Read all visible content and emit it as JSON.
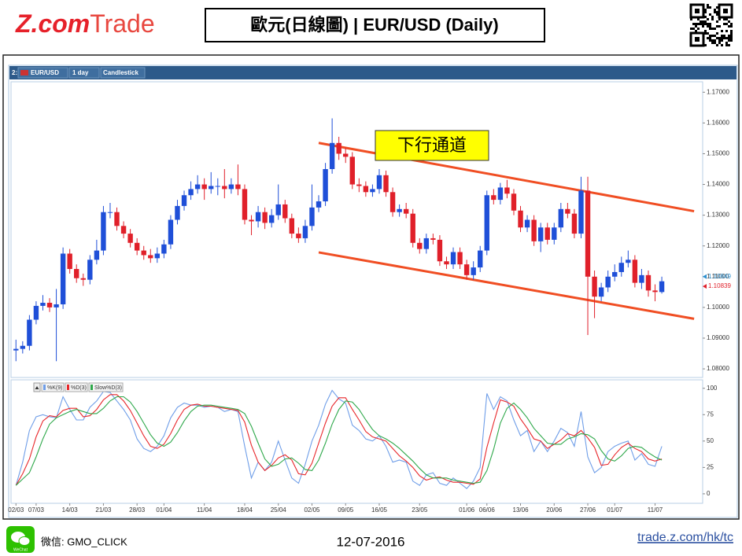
{
  "header": {
    "logo_left": "Z.com",
    "logo_right": "Trade",
    "title": "歐元(日線圖) | EUR/USD (Daily)"
  },
  "toolbar": {
    "slot": "2:",
    "symbol": "EUR/USD",
    "interval": "1 day",
    "chart_type": "Candlestick"
  },
  "chart_data": [
    {
      "type": "candlestick",
      "annotation": "下行通道",
      "up_color": "#1f4fd8",
      "down_color": "#e0202a",
      "open": [
        1.086,
        1.0865,
        1.0875,
        1.096,
        1.1005,
        1.1015,
        1.1,
        1.101,
        1.1175,
        1.1125,
        1.1095,
        1.109,
        1.1155,
        1.1185,
        1.131,
        1.131,
        1.1265,
        1.124,
        1.121,
        1.1185,
        1.117,
        1.116,
        1.1175,
        1.1205,
        1.1285,
        1.133,
        1.1365,
        1.1385,
        1.14,
        1.1385,
        1.1395,
        1.1395,
        1.1385,
        1.14,
        1.1385,
        1.1285,
        1.128,
        1.131,
        1.1275,
        1.13,
        1.1335,
        1.129,
        1.124,
        1.1225,
        1.1265,
        1.1325,
        1.1345,
        1.145,
        1.1535,
        1.15,
        1.149,
        1.14,
        1.1395,
        1.1375,
        1.1385,
        1.143,
        1.1375,
        1.131,
        1.132,
        1.1305,
        1.121,
        1.119,
        1.1225,
        1.122,
        1.115,
        1.114,
        1.118,
        1.114,
        1.1105,
        1.113,
        1.1185,
        1.1365,
        1.135,
        1.139,
        1.137,
        1.1315,
        1.126,
        1.1285,
        1.1215,
        1.126,
        1.122,
        1.126,
        1.132,
        1.1305,
        1.124,
        1.138,
        1.11,
        1.1035,
        1.1065,
        1.11,
        1.1115,
        1.1145,
        1.1155,
        1.108,
        1.1105,
        1.1055,
        1.105
      ],
      "high": [
        1.0895,
        1.089,
        1.0975,
        1.102,
        1.104,
        1.103,
        1.106,
        1.1195,
        1.119,
        1.114,
        1.111,
        1.117,
        1.122,
        1.133,
        1.134,
        1.1325,
        1.128,
        1.1255,
        1.1225,
        1.12,
        1.119,
        1.1195,
        1.122,
        1.13,
        1.135,
        1.138,
        1.141,
        1.143,
        1.142,
        1.144,
        1.142,
        1.145,
        1.142,
        1.1465,
        1.14,
        1.13,
        1.133,
        1.1325,
        1.132,
        1.14,
        1.135,
        1.1305,
        1.126,
        1.1285,
        1.14,
        1.1365,
        1.147,
        1.1615,
        1.1555,
        1.152,
        1.1505,
        1.142,
        1.141,
        1.14,
        1.145,
        1.1445,
        1.139,
        1.1335,
        1.134,
        1.132,
        1.1225,
        1.124,
        1.124,
        1.1235,
        1.1165,
        1.1195,
        1.1195,
        1.1155,
        1.115,
        1.12,
        1.138,
        1.1385,
        1.1405,
        1.1415,
        1.1385,
        1.133,
        1.13,
        1.13,
        1.1275,
        1.1275,
        1.1275,
        1.134,
        1.134,
        1.132,
        1.1425,
        1.1425,
        1.112,
        1.108,
        1.112,
        1.114,
        1.1165,
        1.1185,
        1.117,
        1.1125,
        1.112,
        1.1075,
        1.11
      ],
      "low": [
        1.0825,
        1.085,
        1.086,
        1.0945,
        1.099,
        1.0985,
        1.0825,
        1.0995,
        1.111,
        1.108,
        1.107,
        1.1075,
        1.114,
        1.117,
        1.129,
        1.125,
        1.1225,
        1.1195,
        1.117,
        1.1155,
        1.1145,
        1.1145,
        1.116,
        1.119,
        1.127,
        1.1315,
        1.135,
        1.137,
        1.135,
        1.137,
        1.1365,
        1.1355,
        1.137,
        1.1365,
        1.127,
        1.1235,
        1.126,
        1.1255,
        1.126,
        1.1285,
        1.1275,
        1.1225,
        1.121,
        1.121,
        1.125,
        1.131,
        1.133,
        1.1435,
        1.148,
        1.147,
        1.1385,
        1.1375,
        1.136,
        1.136,
        1.137,
        1.136,
        1.1295,
        1.1295,
        1.129,
        1.1195,
        1.1175,
        1.1175,
        1.1205,
        1.1135,
        1.1125,
        1.1125,
        1.1125,
        1.109,
        1.109,
        1.1115,
        1.117,
        1.1335,
        1.1335,
        1.1355,
        1.13,
        1.1245,
        1.1245,
        1.12,
        1.118,
        1.1205,
        1.1205,
        1.1245,
        1.129,
        1.1225,
        1.1225,
        1.091,
        1.0965,
        1.102,
        1.105,
        1.1085,
        1.11,
        1.113,
        1.1065,
        1.106,
        1.1035,
        1.102,
        1.1045
      ],
      "close": [
        1.0865,
        1.0875,
        1.096,
        1.1005,
        1.1015,
        1.1,
        1.101,
        1.1175,
        1.1125,
        1.1095,
        1.109,
        1.1155,
        1.1185,
        1.131,
        1.131,
        1.1265,
        1.124,
        1.121,
        1.1185,
        1.117,
        1.116,
        1.1175,
        1.1205,
        1.1285,
        1.133,
        1.1365,
        1.1385,
        1.14,
        1.1385,
        1.1395,
        1.1395,
        1.1385,
        1.14,
        1.1385,
        1.1285,
        1.128,
        1.131,
        1.1275,
        1.13,
        1.1335,
        1.129,
        1.124,
        1.1225,
        1.1265,
        1.1325,
        1.1345,
        1.145,
        1.1535,
        1.15,
        1.149,
        1.14,
        1.1395,
        1.1375,
        1.1385,
        1.143,
        1.1375,
        1.131,
        1.132,
        1.1305,
        1.121,
        1.119,
        1.1225,
        1.122,
        1.115,
        1.114,
        1.118,
        1.114,
        1.1105,
        1.113,
        1.1185,
        1.1365,
        1.135,
        1.139,
        1.137,
        1.1315,
        1.126,
        1.1285,
        1.1215,
        1.126,
        1.122,
        1.126,
        1.132,
        1.1305,
        1.124,
        1.138,
        1.11,
        1.1035,
        1.1065,
        1.11,
        1.1115,
        1.1145,
        1.1155,
        1.108,
        1.1105,
        1.1055,
        1.105,
        1.1085
      ],
      "ylim": [
        1.0772,
        1.1734
      ],
      "yticks": [
        {
          "value": 1.08,
          "label": "1.08000"
        },
        {
          "value": 1.09,
          "label": "1.09000"
        },
        {
          "value": 1.1,
          "label": "1.10000"
        },
        {
          "value": 1.11,
          "label": "1.11000"
        },
        {
          "value": 1.12,
          "label": "1.12000"
        },
        {
          "value": 1.13,
          "label": "1.13000"
        },
        {
          "value": 1.14,
          "label": "1.14000"
        },
        {
          "value": 1.15,
          "label": "1.15000"
        },
        {
          "value": 1.16,
          "label": "1.16000"
        },
        {
          "value": 1.17,
          "label": "1.17000"
        }
      ],
      "last_prices": [
        {
          "value": 1.10849,
          "color": "#2a8fd0"
        },
        {
          "value": 1.10839,
          "color": "#e0202a"
        }
      ],
      "trend_lines": [
        {
          "color": "#f04e23",
          "x": [
            45,
            100.8
          ],
          "y": [
            1.1535,
            1.1313
          ]
        },
        {
          "color": "#f04e23",
          "x": [
            45,
            100.8
          ],
          "y": [
            1.1179,
            1.0963
          ]
        }
      ]
    },
    {
      "type": "line",
      "categories": [
        "02/03",
        null,
        null,
        "07/03",
        null,
        null,
        null,
        null,
        "14/03",
        null,
        null,
        null,
        null,
        "21/03",
        null,
        null,
        null,
        null,
        "28/03",
        null,
        null,
        null,
        "01/04",
        null,
        null,
        null,
        null,
        null,
        "11/04",
        null,
        null,
        null,
        null,
        null,
        "18/04",
        null,
        null,
        null,
        null,
        "25/04",
        null,
        null,
        null,
        null,
        "02/05",
        null,
        null,
        null,
        null,
        "09/05",
        null,
        null,
        null,
        null,
        "16/05",
        null,
        null,
        null,
        null,
        null,
        "23/05",
        null,
        null,
        null,
        null,
        null,
        null,
        "01/06",
        null,
        null,
        "06/06",
        null,
        null,
        null,
        null,
        "13/06",
        null,
        null,
        null,
        null,
        "20/06",
        null,
        null,
        null,
        null,
        "27/06",
        null,
        null,
        null,
        "01/07",
        null,
        null,
        null,
        null,
        null,
        "11/07",
        null
      ],
      "series": [
        {
          "name": "%K(9)",
          "color": "#6f9ee8",
          "values": [
            8,
            30,
            60,
            73,
            75,
            73,
            72,
            92,
            80,
            70,
            70,
            82,
            88,
            97,
            96,
            88,
            80,
            70,
            52,
            43,
            40,
            45,
            55,
            72,
            82,
            86,
            84,
            84,
            82,
            83,
            82,
            78,
            80,
            78,
            45,
            15,
            30,
            22,
            30,
            50,
            32,
            15,
            10,
            28,
            50,
            65,
            85,
            98,
            90,
            86,
            65,
            60,
            52,
            50,
            55,
            45,
            30,
            32,
            30,
            12,
            8,
            18,
            20,
            10,
            8,
            15,
            10,
            5,
            12,
            25,
            95,
            80,
            92,
            88,
            70,
            55,
            60,
            40,
            50,
            40,
            50,
            62,
            58,
            45,
            78,
            35,
            20,
            25,
            40,
            45,
            48,
            50,
            32,
            38,
            28,
            26,
            45
          ]
        },
        {
          "name": "%D(3)",
          "color": "#e8262a",
          "values": [
            8,
            19,
            33,
            54,
            69,
            74,
            73,
            79,
            81,
            81,
            73,
            74,
            80,
            89,
            94,
            94,
            88,
            79,
            67,
            55,
            45,
            43,
            47,
            57,
            70,
            80,
            84,
            85,
            83,
            83,
            82,
            81,
            80,
            79,
            68,
            46,
            30,
            22,
            27,
            34,
            37,
            32,
            19,
            18,
            29,
            48,
            67,
            83,
            91,
            91,
            80,
            70,
            59,
            54,
            52,
            50,
            43,
            36,
            31,
            25,
            17,
            13,
            15,
            16,
            13,
            11,
            11,
            10,
            9,
            14,
            44,
            67,
            89,
            87,
            83,
            71,
            62,
            52,
            50,
            43,
            47,
            51,
            57,
            55,
            60,
            53,
            44,
            27,
            28,
            37,
            44,
            48,
            43,
            40,
            33,
            31,
            33
          ]
        },
        {
          "name": "Slow%D(3)",
          "color": "#2ea84a",
          "values": [
            8,
            14,
            20,
            35,
            52,
            66,
            72,
            75,
            78,
            80,
            78,
            76,
            76,
            81,
            88,
            92,
            92,
            87,
            78,
            67,
            56,
            48,
            45,
            49,
            58,
            69,
            78,
            83,
            84,
            84,
            83,
            82,
            81,
            80,
            76,
            64,
            48,
            33,
            26,
            28,
            33,
            34,
            29,
            23,
            22,
            32,
            48,
            66,
            80,
            88,
            87,
            80,
            70,
            61,
            55,
            52,
            48,
            43,
            37,
            31,
            24,
            18,
            15,
            15,
            15,
            13,
            12,
            11,
            10,
            11,
            22,
            42,
            67,
            81,
            86,
            80,
            72,
            62,
            55,
            48,
            47,
            47,
            52,
            54,
            57,
            56,
            52,
            41,
            33,
            31,
            36,
            43,
            45,
            44,
            39,
            35,
            32
          ]
        }
      ],
      "ylim": [
        -9,
        108
      ],
      "yticks": [
        0,
        25,
        50,
        75,
        100
      ]
    }
  ],
  "footer": {
    "wechat_icon": "WeChat",
    "wechat": "微信: GMO_CLICK",
    "date": "12-07-2016",
    "url": "trade.z.com/hk/tc"
  }
}
